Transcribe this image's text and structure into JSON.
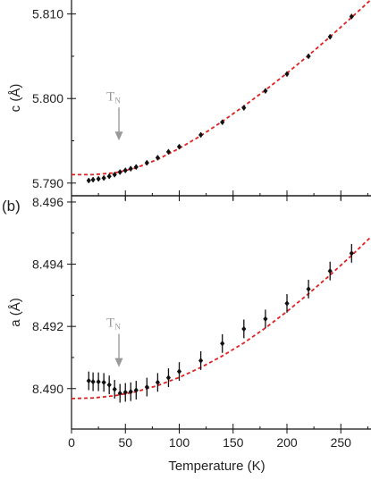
{
  "chart_data": [
    {
      "panel": "top",
      "type": "scatter",
      "ylabel": "c (Å)",
      "xlim": [
        0,
        278
      ],
      "ylim": [
        5.7885,
        5.8125
      ],
      "x_ticks": [
        0,
        50,
        100,
        150,
        200,
        250
      ],
      "y_ticks": [
        5.79,
        5.8,
        5.81
      ],
      "y_tick_labels": [
        "5.790",
        "5.800",
        "5.810"
      ],
      "x_tick_labels_shown": false,
      "series": [
        {
          "kind": "points",
          "marker_color": "#111111",
          "points": [
            {
              "x": 16,
              "y": 5.7903,
              "err": 0.0003
            },
            {
              "x": 20,
              "y": 5.7904,
              "err": 0.0003
            },
            {
              "x": 25,
              "y": 5.7905,
              "err": 0.0003
            },
            {
              "x": 30,
              "y": 5.7906,
              "err": 0.0003
            },
            {
              "x": 35,
              "y": 5.7908,
              "err": 0.0003
            },
            {
              "x": 40,
              "y": 5.791,
              "err": 0.0003
            },
            {
              "x": 45,
              "y": 5.7913,
              "err": 0.0003
            },
            {
              "x": 50,
              "y": 5.7915,
              "err": 0.0003
            },
            {
              "x": 55,
              "y": 5.7917,
              "err": 0.0003
            },
            {
              "x": 60,
              "y": 5.7919,
              "err": 0.0003
            },
            {
              "x": 70,
              "y": 5.7924,
              "err": 0.0003
            },
            {
              "x": 80,
              "y": 5.793,
              "err": 0.0003
            },
            {
              "x": 90,
              "y": 5.7937,
              "err": 0.0003
            },
            {
              "x": 100,
              "y": 5.7943,
              "err": 0.0003
            },
            {
              "x": 120,
              "y": 5.7957,
              "err": 0.0003
            },
            {
              "x": 140,
              "y": 5.7972,
              "err": 0.0003
            },
            {
              "x": 160,
              "y": 5.7989,
              "err": 0.0003
            },
            {
              "x": 180,
              "y": 5.8009,
              "err": 0.0003
            },
            {
              "x": 200,
              "y": 5.8029,
              "err": 0.0003
            },
            {
              "x": 220,
              "y": 5.805,
              "err": 0.0003
            },
            {
              "x": 240,
              "y": 5.8073,
              "err": 0.0003
            },
            {
              "x": 260,
              "y": 5.8097,
              "err": 0.0003
            }
          ]
        },
        {
          "kind": "fit",
          "style": "dashed",
          "color": "#e02020",
          "points": [
            {
              "x": 0,
              "y": 5.791
            },
            {
              "x": 20,
              "y": 5.791
            },
            {
              "x": 40,
              "y": 5.7912
            },
            {
              "x": 60,
              "y": 5.7918
            },
            {
              "x": 80,
              "y": 5.7928
            },
            {
              "x": 100,
              "y": 5.7941
            },
            {
              "x": 120,
              "y": 5.7956
            },
            {
              "x": 140,
              "y": 5.7973
            },
            {
              "x": 160,
              "y": 5.7991
            },
            {
              "x": 180,
              "y": 5.801
            },
            {
              "x": 200,
              "y": 5.803
            },
            {
              "x": 220,
              "y": 5.8051
            },
            {
              "x": 240,
              "y": 5.8073
            },
            {
              "x": 260,
              "y": 5.8096
            },
            {
              "x": 278,
              "y": 5.8117
            }
          ]
        }
      ],
      "annotations": [
        {
          "text": "T",
          "subscript": "N",
          "arrow_x": 44,
          "arrow_target_y": 5.7945,
          "color": "#999999"
        }
      ]
    },
    {
      "panel": "bottom",
      "type": "scatter",
      "panel_label": "(b)",
      "xlabel": "Temperature (K)",
      "ylabel": "a (Å)",
      "xlim": [
        0,
        278
      ],
      "ylim": [
        8.4887,
        8.4962
      ],
      "x_ticks": [
        0,
        50,
        100,
        150,
        200,
        250
      ],
      "x_tick_labels": [
        "0",
        "50",
        "100",
        "150",
        "200",
        "250"
      ],
      "y_ticks": [
        8.49,
        8.492,
        8.494,
        8.496
      ],
      "y_tick_labels": [
        "8.490",
        "8.492",
        "8.494",
        "8.496"
      ],
      "series": [
        {
          "kind": "points",
          "marker_color": "#111111",
          "points": [
            {
              "x": 16,
              "y": 8.49025,
              "err": 0.0003
            },
            {
              "x": 20,
              "y": 8.49022,
              "err": 0.0003
            },
            {
              "x": 25,
              "y": 8.49022,
              "err": 0.0003
            },
            {
              "x": 30,
              "y": 8.4902,
              "err": 0.0003
            },
            {
              "x": 35,
              "y": 8.49012,
              "err": 0.0003
            },
            {
              "x": 40,
              "y": 8.48998,
              "err": 0.0003
            },
            {
              "x": 45,
              "y": 8.48985,
              "err": 0.0003
            },
            {
              "x": 50,
              "y": 8.48988,
              "err": 0.0003
            },
            {
              "x": 55,
              "y": 8.4899,
              "err": 0.0003
            },
            {
              "x": 60,
              "y": 8.48995,
              "err": 0.0003
            },
            {
              "x": 70,
              "y": 8.49005,
              "err": 0.0003
            },
            {
              "x": 80,
              "y": 8.4902,
              "err": 0.0003
            },
            {
              "x": 90,
              "y": 8.49035,
              "err": 0.0003
            },
            {
              "x": 100,
              "y": 8.49055,
              "err": 0.0003
            },
            {
              "x": 120,
              "y": 8.4909,
              "err": 0.0003
            },
            {
              "x": 140,
              "y": 8.49145,
              "err": 0.0003
            },
            {
              "x": 160,
              "y": 8.49192,
              "err": 0.0003
            },
            {
              "x": 180,
              "y": 8.49224,
              "err": 0.0003
            },
            {
              "x": 200,
              "y": 8.49274,
              "err": 0.0003
            },
            {
              "x": 220,
              "y": 8.4932,
              "err": 0.0003
            },
            {
              "x": 240,
              "y": 8.49378,
              "err": 0.0003
            },
            {
              "x": 260,
              "y": 8.49435,
              "err": 0.0003
            }
          ]
        },
        {
          "kind": "fit",
          "style": "dashed",
          "color": "#e02020",
          "points": [
            {
              "x": 0,
              "y": 8.48968
            },
            {
              "x": 20,
              "y": 8.4897
            },
            {
              "x": 40,
              "y": 8.48977
            },
            {
              "x": 60,
              "y": 8.4899
            },
            {
              "x": 80,
              "y": 8.4901
            },
            {
              "x": 100,
              "y": 8.49036
            },
            {
              "x": 120,
              "y": 8.49068
            },
            {
              "x": 140,
              "y": 8.49105
            },
            {
              "x": 160,
              "y": 8.49147
            },
            {
              "x": 180,
              "y": 8.49195
            },
            {
              "x": 200,
              "y": 8.49248
            },
            {
              "x": 220,
              "y": 8.49305
            },
            {
              "x": 240,
              "y": 8.49365
            },
            {
              "x": 260,
              "y": 8.49428
            },
            {
              "x": 278,
              "y": 8.49488
            }
          ]
        }
      ],
      "annotations": [
        {
          "text": "T",
          "subscript": "N",
          "arrow_x": 44,
          "arrow_target_y": 8.49055,
          "color": "#999999"
        }
      ]
    }
  ]
}
